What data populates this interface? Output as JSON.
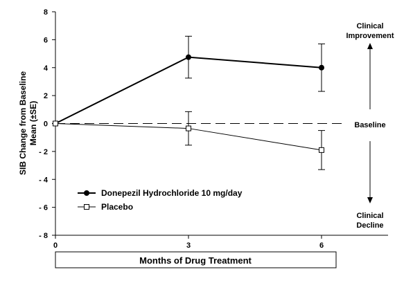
{
  "chart_data": {
    "type": "line",
    "xlabel": "Months of Drug Treatment",
    "ylabel_lines": [
      "SIB Change from Baseline",
      "Mean (±SE)"
    ],
    "x": [
      0,
      3,
      6
    ],
    "xlim": [
      0,
      7.5
    ],
    "ylim": [
      -8,
      8
    ],
    "x_tick_labels": [
      "0",
      "3",
      "6"
    ],
    "y_tick_labels": [
      "8",
      "6",
      "4",
      "2",
      "0",
      "- 2",
      "- 4",
      "- 6",
      "- 8"
    ],
    "y_tick_values": [
      8,
      6,
      4,
      2,
      0,
      -2,
      -4,
      -6,
      -8
    ],
    "baseline": {
      "value": 0,
      "label": "Baseline"
    },
    "annotations": {
      "top": [
        "Clinical",
        "Improvement"
      ],
      "bottom": [
        "Clinical",
        "Decline"
      ]
    },
    "series": [
      {
        "name": "Donepezil Hydrochloride 10 mg/day",
        "marker": "filled-circle",
        "values": [
          0,
          4.75,
          4.0
        ],
        "se": [
          0,
          1.5,
          1.7
        ]
      },
      {
        "name": "Placebo",
        "marker": "open-square",
        "values": [
          0,
          -0.35,
          -1.9
        ],
        "se": [
          0,
          1.2,
          1.4
        ]
      }
    ],
    "grid": false,
    "legend_position": "bottom-left"
  }
}
